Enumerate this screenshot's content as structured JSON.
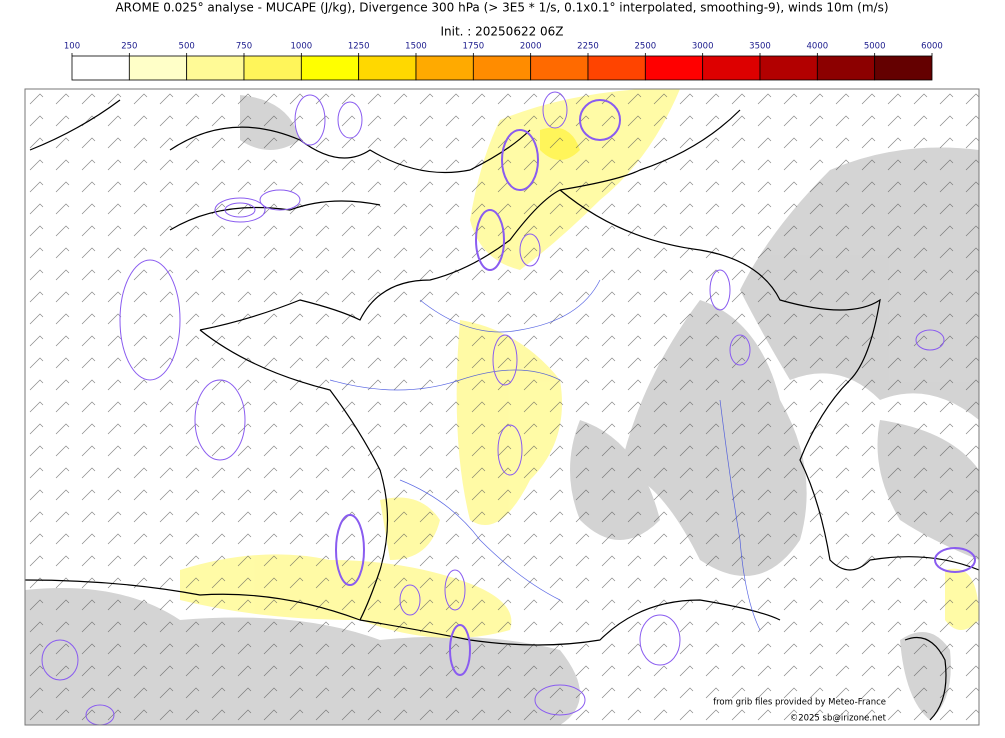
{
  "header": {
    "title": "AROME 0.025° analyse - MUCAPE (J/kg), Divergence 300 hPa (> 3E5 * 1/s, 0.1x0.1° interpolated, smoothing-9), winds 10m (m/s)",
    "init": "Init. : 20250622 06Z"
  },
  "colorbar": {
    "ticks": [
      100,
      250,
      500,
      750,
      1000,
      1250,
      1500,
      1750,
      2000,
      2250,
      2500,
      3000,
      3500,
      4000,
      5000,
      6000
    ],
    "colors": [
      "#ffffff",
      "#ffffc8",
      "#fffa96",
      "#fff55a",
      "#ffff00",
      "#ffd800",
      "#ffaa00",
      "#ff8c00",
      "#ff6a00",
      "#ff4400",
      "#ff0000",
      "#dd0000",
      "#b20000",
      "#8c0000",
      "#640000"
    ]
  },
  "footer": {
    "source": "from grib files provided by Meteo-France",
    "copyright": "©2025 sb@irizone.net"
  }
}
